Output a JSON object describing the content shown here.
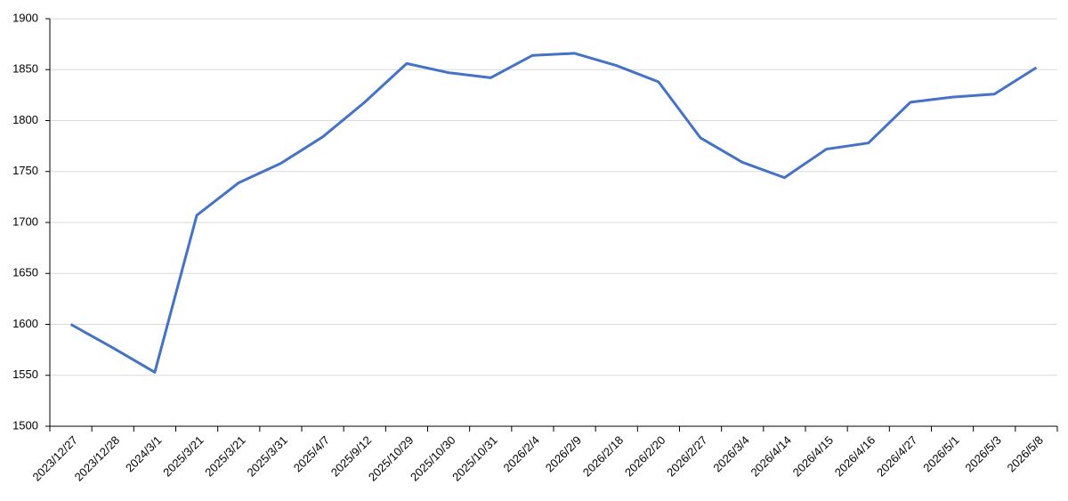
{
  "chart_data": {
    "type": "line",
    "categories": [
      "2023/12/27",
      "2023/12/28",
      "2024/3/1",
      "2025/3/21",
      "2025/3/21",
      "2025/3/31",
      "2025/4/7",
      "2025/9/12",
      "2025/10/29",
      "2025/10/30",
      "2025/10/31",
      "2026/2/4",
      "2026/2/9",
      "2026/2/18",
      "2026/2/20",
      "2026/2/27",
      "2026/3/4",
      "2026/4/14",
      "2026/4/15",
      "2026/4/16",
      "2026/4/27",
      "2026/5/1",
      "2026/5/3",
      "2026/5/8"
    ],
    "series": [
      {
        "color": "#4472c4",
        "values": [
          1600,
          1577,
          1553,
          1707,
          1739,
          1758,
          1784,
          1818,
          1856,
          1847,
          1842,
          1864,
          1866,
          1854,
          1838,
          1783,
          1759,
          1744,
          1772,
          1778,
          1818,
          1823,
          1826,
          1852
        ]
      }
    ],
    "ylim": [
      1500,
      1900
    ],
    "yticks": [
      1500,
      1550,
      1600,
      1650,
      1700,
      1750,
      1800,
      1850,
      1900
    ],
    "grid": true
  }
}
